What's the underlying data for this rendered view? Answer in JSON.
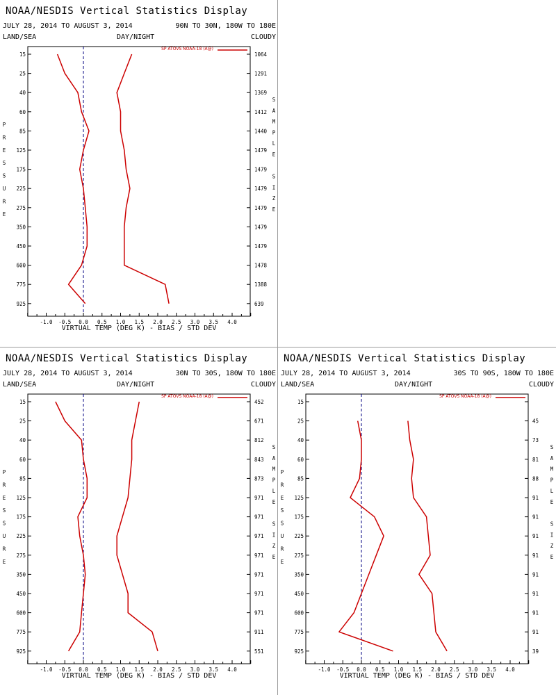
{
  "colors": {
    "series": "#cc0000",
    "zero_line": "#000080",
    "frame": "#000000"
  },
  "chart_data": [
    {
      "type": "line",
      "title": "NOAA/NESDIS Vertical Statistics Display",
      "date_range": "JULY 28, 2014 TO AUGUST 3, 2014",
      "region": "90N TO 30N, 180W TO 180E",
      "corner_labels": {
        "left": "LAND/SEA",
        "center": "DAY/NIGHT",
        "right": "CLOUDY"
      },
      "xlabel": "VIRTUAL TEMP (DEG K) - BIAS / STD DEV",
      "ylabel": "PRESSURE",
      "y2label": "SAMPLE SIZE",
      "legend": "SP ATOVS NOAA-18 (A@)",
      "xlim": [
        -1.5,
        4.5
      ],
      "xticks": [
        "-1.0",
        "-0.5",
        "0.0",
        "0.5",
        "1.0",
        "1.5",
        "2.0",
        "2.5",
        "3.0",
        "3.5",
        "4.0"
      ],
      "pressure_levels": [
        "15",
        "25",
        "40",
        "60",
        "85",
        "125",
        "175",
        "225",
        "275",
        "350",
        "450",
        "600",
        "775",
        "925"
      ],
      "sample_size": [
        "1064",
        "1291",
        "1369",
        "1412",
        "1440",
        "1479",
        "1479",
        "1479",
        "1479",
        "1479",
        "1479",
        "1478",
        "1388",
        "639"
      ],
      "series": [
        {
          "values": [
            -0.7,
            -0.5,
            -0.15,
            -0.05,
            0.15,
            0.0,
            -0.1,
            0.0,
            0.05,
            0.1,
            0.1,
            -0.05,
            -0.4,
            0.05
          ]
        },
        {
          "values": [
            1.3,
            1.1,
            0.9,
            1.0,
            1.0,
            1.1,
            1.15,
            1.25,
            1.15,
            1.1,
            1.1,
            1.1,
            2.2,
            2.3
          ]
        }
      ]
    },
    {
      "type": "line",
      "title": "NOAA/NESDIS Vertical Statistics Display",
      "date_range": "JULY 28, 2014 TO AUGUST 3, 2014",
      "region": "30N TO 30S, 180W TO 180E",
      "corner_labels": {
        "left": "LAND/SEA",
        "center": "DAY/NIGHT",
        "right": "CLOUDY"
      },
      "xlabel": "VIRTUAL TEMP (DEG K) - BIAS / STD DEV",
      "ylabel": "PRESSURE",
      "y2label": "SAMPLE SIZE",
      "legend": "SP ATOVS NOAA-18 (A@)",
      "xlim": [
        -1.5,
        4.5
      ],
      "xticks": [
        "-1.0",
        "-0.5",
        "0.0",
        "0.5",
        "1.0",
        "1.5",
        "2.0",
        "2.5",
        "3.0",
        "3.5",
        "4.0"
      ],
      "pressure_levels": [
        "15",
        "25",
        "40",
        "60",
        "85",
        "125",
        "175",
        "225",
        "275",
        "350",
        "450",
        "600",
        "775",
        "925"
      ],
      "sample_size": [
        "452",
        "671",
        "812",
        "843",
        "873",
        "971",
        "971",
        "971",
        "971",
        "971",
        "971",
        "971",
        "911",
        "551"
      ],
      "series": [
        {
          "values": [
            -0.75,
            -0.5,
            -0.05,
            0.0,
            0.1,
            0.1,
            -0.15,
            -0.1,
            0.0,
            0.05,
            0.0,
            -0.05,
            -0.1,
            -0.4
          ]
        },
        {
          "values": [
            1.5,
            1.4,
            1.3,
            1.3,
            1.25,
            1.2,
            1.05,
            0.9,
            0.9,
            1.05,
            1.2,
            1.2,
            1.85,
            2.0
          ]
        }
      ]
    },
    {
      "type": "line",
      "title": "NOAA/NESDIS Vertical Statistics Display",
      "date_range": "JULY 28, 2014 TO AUGUST 3, 2014",
      "region": "30S TO 90S, 180W TO 180E",
      "corner_labels": {
        "left": "LAND/SEA",
        "center": "DAY/NIGHT",
        "right": "CLOUDY"
      },
      "xlabel": "VIRTUAL TEMP (DEG K) - BIAS / STD DEV",
      "ylabel": "PRESSURE",
      "y2label": "SAMPLE SIZE",
      "legend": "SP ATOVS NOAA-18 (A@)",
      "xlim": [
        -1.5,
        4.5
      ],
      "xticks": [
        "-1.0",
        "-0.5",
        "0.0",
        "0.5",
        "1.0",
        "1.5",
        "2.0",
        "2.5",
        "3.0",
        "3.5",
        "4.0"
      ],
      "pressure_levels": [
        "15",
        "25",
        "40",
        "60",
        "85",
        "125",
        "175",
        "225",
        "275",
        "350",
        "450",
        "600",
        "775",
        "925"
      ],
      "sample_size": [
        "",
        "45",
        "73",
        "81",
        "88",
        "91",
        "91",
        "91",
        "91",
        "91",
        "91",
        "91",
        "91",
        "39"
      ],
      "series": [
        {
          "values": [
            null,
            -0.1,
            0.0,
            0.0,
            -0.05,
            -0.3,
            0.35,
            0.6,
            0.4,
            0.2,
            0.0,
            -0.2,
            -0.6,
            0.85
          ]
        },
        {
          "values": [
            null,
            1.25,
            1.3,
            1.4,
            1.35,
            1.4,
            1.75,
            1.8,
            1.85,
            1.55,
            1.9,
            1.95,
            2.0,
            2.3
          ]
        }
      ]
    }
  ]
}
